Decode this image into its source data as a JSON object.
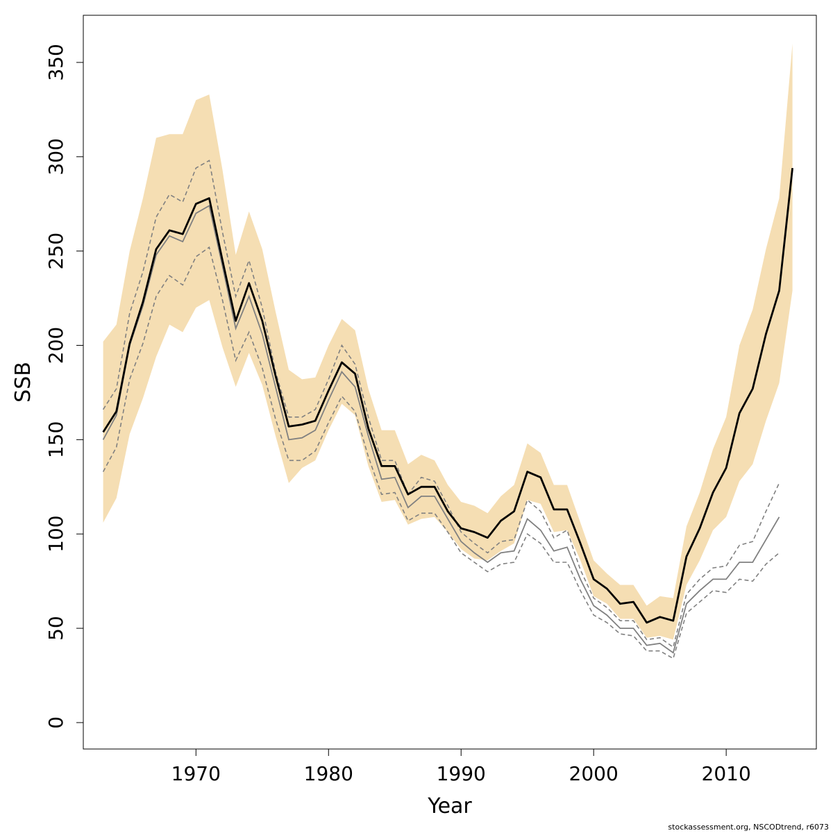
{
  "chart_data": {
    "type": "line",
    "xlabel": "Year",
    "ylabel": "SSB",
    "xlim": [
      1961.5,
      2016.8
    ],
    "ylim": [
      -14,
      375
    ],
    "x_ticks": [
      1970,
      1980,
      1990,
      2000,
      2010
    ],
    "y_ticks": [
      0,
      50,
      100,
      150,
      200,
      250,
      300,
      350
    ],
    "grid": false,
    "legend": "none",
    "colors": {
      "band": "#f5deb3",
      "current": "#000000",
      "previous": "#808080",
      "previous_ci": "#808080"
    },
    "years": [
      1963,
      1964,
      1965,
      1966,
      1967,
      1968,
      1969,
      1970,
      1971,
      1972,
      1973,
      1974,
      1975,
      1976,
      1977,
      1978,
      1979,
      1980,
      1981,
      1982,
      1983,
      1984,
      1985,
      1986,
      1987,
      1988,
      1989,
      1990,
      1991,
      1992,
      1993,
      1994,
      1995,
      1996,
      1997,
      1998,
      1999,
      2000,
      2001,
      2002,
      2003,
      2004,
      2005,
      2006,
      2007,
      2008,
      2009,
      2010,
      2011,
      2012,
      2013,
      2014,
      2015
    ],
    "series": [
      {
        "role": "current estimate",
        "style": "solid-black-thick",
        "values": [
          154,
          165,
          201,
          223,
          251,
          261,
          259,
          275,
          278,
          245,
          213,
          233,
          213,
          184,
          157,
          158,
          160,
          176,
          191,
          185,
          156,
          136,
          136,
          121,
          125,
          125,
          112,
          103,
          101,
          98,
          107,
          112,
          133,
          130,
          113,
          113,
          95,
          76,
          71,
          63,
          64,
          53,
          56,
          54,
          88,
          103,
          122,
          135,
          164,
          177,
          206,
          229,
          294
        ]
      },
      {
        "role": "previous estimate",
        "style": "solid-grey",
        "values": [
          150,
          163,
          200,
          221,
          248,
          258,
          255,
          270,
          274,
          242,
          209,
          226,
          206,
          178,
          150,
          151,
          155,
          171,
          186,
          178,
          152,
          129,
          130,
          114,
          120,
          120,
          108,
          96,
          90,
          85,
          90,
          91,
          108,
          102,
          91,
          93,
          76,
          62,
          57,
          50,
          50,
          41,
          42,
          37,
          63,
          70,
          76,
          76,
          85,
          85,
          97,
          109
        ]
      }
    ],
    "band": {
      "role": "current confidence interval",
      "upper": [
        202,
        211,
        250,
        278,
        310,
        312,
        312,
        330,
        333,
        293,
        248,
        271,
        251,
        218,
        187,
        182,
        183,
        200,
        214,
        208,
        177,
        155,
        155,
        137,
        142,
        139,
        126,
        117,
        115,
        111,
        120,
        126,
        148,
        143,
        126,
        126,
        106,
        86,
        79,
        73,
        73,
        62,
        67,
        66,
        104,
        122,
        145,
        162,
        200,
        219,
        251,
        278,
        360
      ],
      "lower": [
        106,
        119,
        153,
        172,
        194,
        211,
        207,
        220,
        224,
        199,
        178,
        196,
        179,
        152,
        127,
        135,
        139,
        155,
        169,
        163,
        136,
        117,
        118,
        105,
        108,
        109,
        101,
        92,
        87,
        86,
        91,
        95,
        118,
        116,
        101,
        102,
        86,
        67,
        63,
        55,
        55,
        45,
        46,
        44,
        73,
        86,
        102,
        109,
        128,
        137,
        160,
        180,
        229
      ]
    },
    "previous_ci": {
      "role": "previous confidence interval",
      "style": "dashed-grey",
      "upper": [
        166,
        177,
        217,
        239,
        268,
        280,
        276,
        294,
        298,
        260,
        226,
        245,
        220,
        186,
        162,
        162,
        166,
        182,
        200,
        190,
        162,
        139,
        139,
        121,
        130,
        128,
        115,
        101,
        95,
        90,
        96,
        97,
        118,
        112,
        98,
        102,
        81,
        66,
        61,
        54,
        54,
        44,
        45,
        40,
        68,
        76,
        82,
        83,
        94,
        96,
        112,
        127
      ],
      "lower": [
        133,
        146,
        182,
        201,
        226,
        237,
        232,
        247,
        252,
        224,
        192,
        207,
        188,
        161,
        139,
        139,
        144,
        159,
        173,
        165,
        141,
        121,
        122,
        107,
        111,
        111,
        101,
        90,
        85,
        80,
        84,
        85,
        100,
        95,
        85,
        85,
        70,
        57,
        53,
        47,
        46,
        38,
        38,
        34,
        58,
        64,
        70,
        69,
        76,
        75,
        84,
        90
      ]
    }
  },
  "credit": "stockassessment.org, NSCODtrend, r6073"
}
